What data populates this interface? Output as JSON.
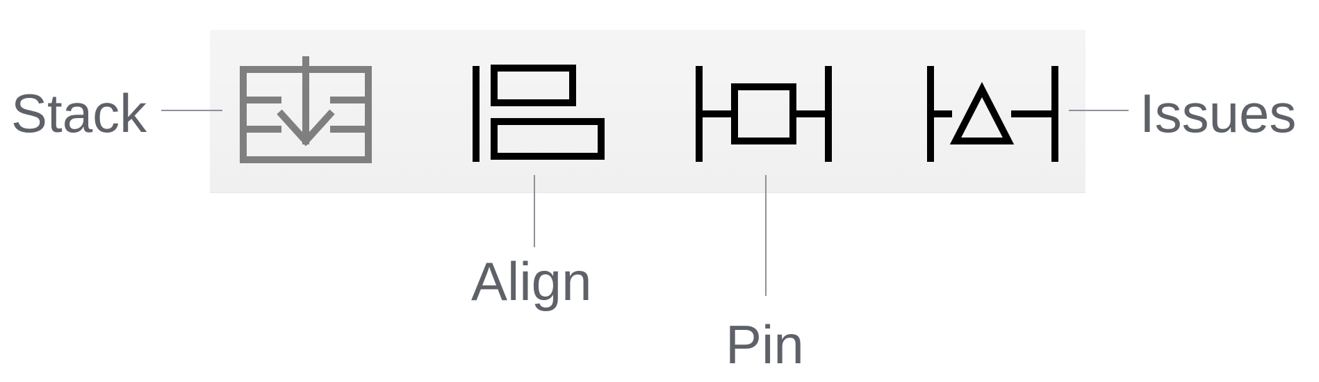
{
  "toolbar": {
    "buttons": [
      {
        "id": "stack",
        "icon": "stack-icon",
        "label": "Stack",
        "color": "#7f7f7f"
      },
      {
        "id": "align",
        "icon": "align-icon",
        "label": "Align",
        "color": "#000000"
      },
      {
        "id": "pin",
        "icon": "pin-icon",
        "label": "Pin",
        "color": "#000000"
      },
      {
        "id": "issues",
        "icon": "issues-icon",
        "label": "Issues",
        "color": "#000000"
      }
    ]
  },
  "colors": {
    "toolbar_background": "#f2f2f2",
    "label_text": "#5e6168",
    "leader_line": "#8d9096",
    "disabled_icon": "#7f7f7f",
    "active_icon": "#000000"
  }
}
